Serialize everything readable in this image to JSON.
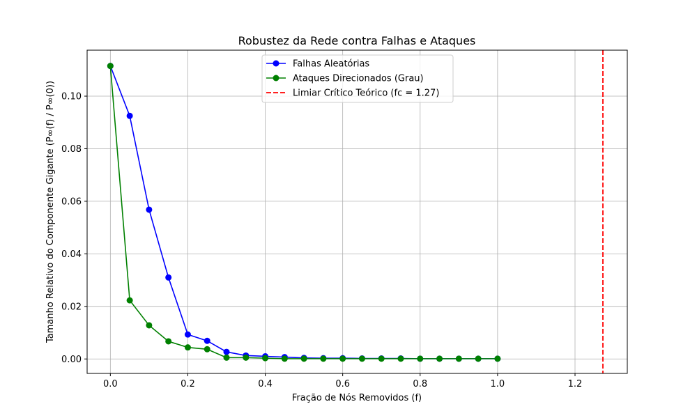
{
  "chart_data": {
    "type": "line",
    "title": "Robustez da Rede contra Falhas e Ataques",
    "xlabel": "Fração de Nós Removidos (f)",
    "ylabel": "Tamanho Relativo do Componente Gigante (P∞(f) / P∞(0))",
    "xlim": [
      -0.06,
      1.335
    ],
    "ylim": [
      -0.0055,
      0.1175
    ],
    "xticks": [
      0.0,
      0.2,
      0.4,
      0.6,
      0.8,
      1.0,
      1.2
    ],
    "xtick_labels": [
      "0.0",
      "0.2",
      "0.4",
      "0.6",
      "0.8",
      "1.0",
      "1.2"
    ],
    "yticks": [
      0.0,
      0.02,
      0.04,
      0.06,
      0.08,
      0.1
    ],
    "ytick_labels": [
      "0.00",
      "0.02",
      "0.04",
      "0.06",
      "0.08",
      "0.10"
    ],
    "grid": true,
    "legend_position": "top-center",
    "x": [
      0.0,
      0.05,
      0.1,
      0.15,
      0.2,
      0.25,
      0.3,
      0.35,
      0.4,
      0.45,
      0.5,
      0.55,
      0.6,
      0.65,
      0.7,
      0.75,
      0.8,
      0.85,
      0.9,
      0.95,
      1.0
    ],
    "series": [
      {
        "name": "Falhas Aleatórias",
        "color": "#0000ff",
        "marker": "circle",
        "values": [
          0.1115,
          0.0925,
          0.0568,
          0.031,
          0.0093,
          0.0069,
          0.0027,
          0.0013,
          0.001,
          0.0007,
          0.0004,
          0.0003,
          0.0003,
          0.0002,
          0.0002,
          0.0002,
          0.0001,
          0.0001,
          0.0001,
          0.0001,
          0.0001
        ]
      },
      {
        "name": "Ataques Direcionados (Grau)",
        "color": "#008000",
        "marker": "circle",
        "values": [
          0.1115,
          0.0223,
          0.0128,
          0.0067,
          0.0044,
          0.0037,
          0.0005,
          0.0005,
          0.0003,
          0.0001,
          0.0001,
          0.0001,
          0.0001,
          0.0001,
          0.0001,
          0.0001,
          0.0001,
          0.0001,
          0.0001,
          0.0001,
          0.0001
        ]
      }
    ],
    "reference_lines": [
      {
        "name": "Limiar Crítico Teórico (fc = 1.27)",
        "orientation": "vertical",
        "x": 1.272,
        "color": "#ff0000",
        "style": "dashed"
      }
    ]
  }
}
